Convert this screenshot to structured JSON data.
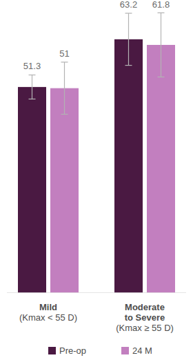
{
  "chart_data": {
    "type": "bar",
    "categories": [
      "Mild\n(Kmax < 55 D)",
      "Moderate\nto Severe\n(Kmax ≥ 55 D)"
    ],
    "series": [
      {
        "name": "Pre-op",
        "color": "#4a1942",
        "values": [
          51.3,
          63.2
        ],
        "errors": [
          3,
          6.5
        ]
      },
      {
        "name": "24 M",
        "color": "#c27fbf",
        "values": [
          51,
          61.8
        ],
        "errors": [
          6.5,
          8
        ]
      }
    ],
    "ylim": [
      0,
      73
    ],
    "yticks": [],
    "tick_labels": "x",
    "data_labels": true,
    "grid": false,
    "legend": "bottom"
  }
}
